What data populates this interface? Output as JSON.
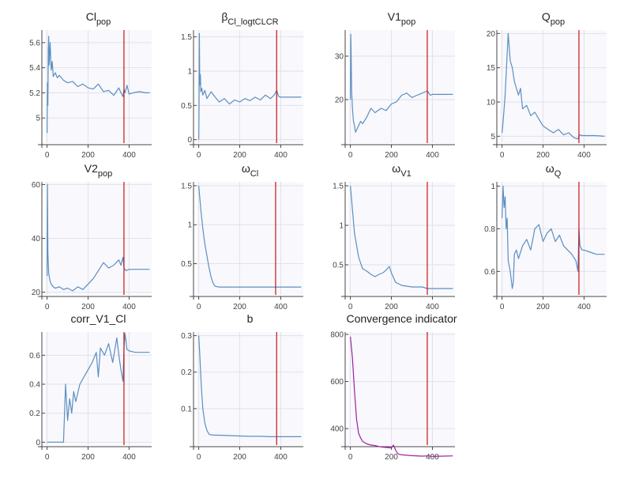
{
  "chart_data": [
    {
      "type": "line",
      "title": "Cl",
      "title_sub": "pop",
      "xticks": [
        0,
        200,
        400
      ],
      "xlim": [
        -10,
        510
      ],
      "yticks": [
        5,
        5.2,
        5.4,
        5.6
      ],
      "ytick_labels": [
        "5",
        "5.2",
        "5.4",
        "5.6"
      ],
      "ylim": [
        4.8,
        5.7
      ],
      "vline": 375,
      "color": "#5b8fbf",
      "x": [
        0,
        2,
        4,
        6,
        8,
        10,
        15,
        20,
        25,
        30,
        40,
        50,
        60,
        80,
        100,
        125,
        150,
        175,
        200,
        225,
        250,
        275,
        300,
        325,
        350,
        360,
        370,
        375,
        380,
        390,
        400,
        420,
        450,
        480,
        500
      ],
      "y": [
        4.88,
        5.28,
        5.1,
        5.55,
        5.65,
        5.42,
        5.6,
        5.38,
        5.45,
        5.33,
        5.36,
        5.32,
        5.34,
        5.3,
        5.28,
        5.29,
        5.25,
        5.27,
        5.24,
        5.23,
        5.27,
        5.21,
        5.22,
        5.18,
        5.24,
        5.2,
        5.17,
        5.23,
        5.2,
        5.26,
        5.19,
        5.2,
        5.21,
        5.2,
        5.2
      ]
    },
    {
      "type": "line",
      "title": "β",
      "title_sub": "Cl_logtCLCR",
      "xticks": [
        0,
        200,
        400
      ],
      "xlim": [
        -10,
        510
      ],
      "yticks": [
        0,
        0.5,
        1,
        1.5
      ],
      "ytick_labels": [
        "0",
        "0.5",
        "1",
        "1.5"
      ],
      "ylim": [
        -0.05,
        1.6
      ],
      "vline": 380,
      "color": "#5b8fbf",
      "x": [
        0,
        1,
        3,
        5,
        8,
        10,
        15,
        20,
        30,
        40,
        60,
        80,
        100,
        125,
        150,
        175,
        200,
        225,
        250,
        275,
        300,
        325,
        350,
        370,
        380,
        390,
        400,
        430,
        460,
        500
      ],
      "y": [
        0,
        0.3,
        1.55,
        0.8,
        0.95,
        0.7,
        0.75,
        0.65,
        0.72,
        0.6,
        0.7,
        0.62,
        0.55,
        0.6,
        0.52,
        0.58,
        0.55,
        0.6,
        0.57,
        0.62,
        0.58,
        0.65,
        0.6,
        0.66,
        0.72,
        0.63,
        0.62,
        0.62,
        0.62,
        0.62
      ]
    },
    {
      "type": "line",
      "title": "V1",
      "title_sub": "pop",
      "xticks": [
        0,
        200,
        400
      ],
      "xlim": [
        -10,
        510
      ],
      "yticks": [
        20,
        30
      ],
      "ytick_labels": [
        "20",
        "30"
      ],
      "ylim": [
        10,
        36
      ],
      "vline": 375,
      "color": "#5b8fbf",
      "x": [
        0,
        2,
        4,
        6,
        10,
        15,
        20,
        25,
        30,
        40,
        50,
        60,
        80,
        100,
        120,
        150,
        175,
        200,
        225,
        250,
        275,
        300,
        325,
        350,
        375,
        390,
        400,
        430,
        460,
        500
      ],
      "y": [
        20,
        35,
        30,
        22,
        18,
        15,
        14,
        12.5,
        13,
        14,
        15,
        14.5,
        16,
        18,
        17,
        18,
        17.5,
        19,
        19.5,
        21,
        21.5,
        20.5,
        21,
        21.5,
        22,
        21,
        21.2,
        21.2,
        21.2,
        21.2
      ]
    },
    {
      "type": "line",
      "title": "Q",
      "title_sub": "pop",
      "xticks": [
        0,
        200,
        400
      ],
      "xlim": [
        -10,
        510
      ],
      "yticks": [
        5,
        10,
        15,
        20
      ],
      "ytick_labels": [
        "5",
        "10",
        "15",
        "20"
      ],
      "ylim": [
        4,
        20.5
      ],
      "vline": 375,
      "color": "#5b8fbf",
      "x": [
        0,
        5,
        10,
        15,
        20,
        25,
        30,
        40,
        50,
        60,
        70,
        80,
        90,
        100,
        120,
        140,
        160,
        180,
        200,
        225,
        250,
        275,
        300,
        325,
        350,
        370,
        375,
        380,
        390,
        400,
        450,
        500
      ],
      "y": [
        5.5,
        7,
        9,
        11,
        14,
        17,
        20,
        16,
        15,
        13,
        12,
        11,
        12,
        9,
        9.5,
        8,
        8.5,
        7.5,
        6.5,
        6,
        5.5,
        6,
        5.2,
        5.5,
        4.8,
        4.6,
        5,
        5.2,
        5.1,
        5.1,
        5.1,
        5
      ]
    },
    {
      "type": "line",
      "title": "V2",
      "title_sub": "pop",
      "xticks": [
        0,
        200,
        400
      ],
      "xlim": [
        -10,
        510
      ],
      "yticks": [
        20,
        40,
        60
      ],
      "ytick_labels": [
        "20",
        "40",
        "60"
      ],
      "ylim": [
        19,
        61
      ],
      "vline": 375,
      "color": "#5b8fbf",
      "x": [
        0,
        2,
        4,
        6,
        8,
        10,
        15,
        20,
        30,
        40,
        60,
        80,
        100,
        125,
        150,
        175,
        200,
        225,
        250,
        275,
        300,
        325,
        350,
        360,
        370,
        375,
        385,
        400,
        430,
        460,
        500
      ],
      "y": [
        26,
        60,
        35,
        30,
        27,
        26,
        24,
        23,
        22,
        21.5,
        22,
        21,
        21.5,
        20.5,
        22,
        21,
        23,
        25,
        28,
        31,
        29,
        30,
        32,
        30,
        33,
        29,
        28,
        28.5,
        28.5,
        28.5,
        28.5
      ]
    },
    {
      "type": "line",
      "title": "ω",
      "title_sub": "Cl",
      "xticks": [
        0,
        200,
        400
      ],
      "xlim": [
        -10,
        510
      ],
      "yticks": [
        0.5,
        1,
        1.5
      ],
      "ytick_labels": [
        "0.5",
        "1",
        "1.5"
      ],
      "ylim": [
        0.1,
        1.55
      ],
      "vline": 375,
      "color": "#5b8fbf",
      "x": [
        0,
        10,
        20,
        30,
        40,
        50,
        60,
        70,
        80,
        100,
        150,
        200,
        250,
        300,
        350,
        375,
        400,
        450,
        500
      ],
      "y": [
        1.5,
        1.2,
        0.95,
        0.75,
        0.6,
        0.45,
        0.33,
        0.25,
        0.21,
        0.2,
        0.2,
        0.2,
        0.2,
        0.2,
        0.2,
        0.2,
        0.2,
        0.2,
        0.2
      ]
    },
    {
      "type": "line",
      "title": "ω",
      "title_sub": "V1",
      "xticks": [
        0,
        200,
        400
      ],
      "xlim": [
        -10,
        510
      ],
      "yticks": [
        0.5,
        1,
        1.5
      ],
      "ytick_labels": [
        "0.5",
        "1",
        "1.5"
      ],
      "ylim": [
        0.12,
        1.55
      ],
      "vline": 375,
      "color": "#5b8fbf",
      "x": [
        0,
        10,
        20,
        30,
        40,
        50,
        60,
        80,
        100,
        120,
        140,
        160,
        180,
        190,
        200,
        220,
        250,
        300,
        350,
        375,
        400,
        450,
        500
      ],
      "y": [
        1.5,
        1.2,
        0.9,
        0.75,
        0.6,
        0.52,
        0.45,
        0.42,
        0.38,
        0.35,
        0.38,
        0.4,
        0.45,
        0.48,
        0.4,
        0.28,
        0.24,
        0.22,
        0.22,
        0.2,
        0.2,
        0.2,
        0.2
      ]
    },
    {
      "type": "line",
      "title": "ω",
      "title_sub": "Q",
      "xticks": [
        0,
        200,
        400
      ],
      "xlim": [
        -10,
        510
      ],
      "yticks": [
        0.6,
        0.8,
        1
      ],
      "ytick_labels": [
        "0.6",
        "0.8",
        "1"
      ],
      "ylim": [
        0.49,
        1.02
      ],
      "vline": 375,
      "color": "#5b8fbf",
      "x": [
        0,
        5,
        10,
        15,
        20,
        25,
        30,
        40,
        50,
        55,
        60,
        70,
        80,
        100,
        120,
        140,
        160,
        180,
        200,
        220,
        240,
        260,
        280,
        300,
        320,
        340,
        360,
        370,
        375,
        380,
        390,
        400,
        430,
        460,
        500
      ],
      "y": [
        0.85,
        1.0,
        0.9,
        0.95,
        0.8,
        0.85,
        0.65,
        0.6,
        0.52,
        0.55,
        0.68,
        0.7,
        0.66,
        0.72,
        0.75,
        0.7,
        0.8,
        0.82,
        0.74,
        0.78,
        0.8,
        0.74,
        0.77,
        0.72,
        0.7,
        0.68,
        0.65,
        0.6,
        0.8,
        0.72,
        0.7,
        0.7,
        0.69,
        0.68,
        0.68
      ]
    },
    {
      "type": "line",
      "title": "corr_V1_Cl",
      "xticks": [
        0,
        200,
        400
      ],
      "xlim": [
        -10,
        510
      ],
      "yticks": [
        0,
        0.2,
        0.4,
        0.6
      ],
      "ytick_labels": [
        "0",
        "0.2",
        "0.4",
        "0.6"
      ],
      "ylim": [
        -0.02,
        0.76
      ],
      "vline": 375,
      "color": "#5b8fbf",
      "x": [
        0,
        40,
        70,
        80,
        85,
        90,
        100,
        110,
        120,
        130,
        140,
        160,
        180,
        200,
        220,
        240,
        250,
        260,
        280,
        300,
        320,
        340,
        350,
        360,
        370,
        375,
        380,
        390,
        400,
        430,
        460,
        500
      ],
      "y": [
        0,
        0,
        0,
        0,
        0.2,
        0.4,
        0.15,
        0.3,
        0.2,
        0.35,
        0.28,
        0.4,
        0.45,
        0.5,
        0.55,
        0.62,
        0.45,
        0.65,
        0.6,
        0.68,
        0.55,
        0.72,
        0.6,
        0.5,
        0.42,
        0.65,
        0.75,
        0.64,
        0.63,
        0.62,
        0.62,
        0.62
      ]
    },
    {
      "type": "line",
      "title": "b",
      "xticks": [
        0,
        200,
        400
      ],
      "xlim": [
        -10,
        510
      ],
      "yticks": [
        0.1,
        0.2,
        0.3
      ],
      "ytick_labels": [
        "0.1",
        "0.2",
        "0.3"
      ],
      "ylim": [
        0.0,
        0.31
      ],
      "vline": 380,
      "color": "#5b8fbf",
      "x": [
        0,
        5,
        10,
        15,
        20,
        30,
        40,
        50,
        60,
        80,
        100,
        150,
        200,
        250,
        300,
        350,
        380,
        400,
        450,
        500
      ],
      "y": [
        0.3,
        0.25,
        0.19,
        0.14,
        0.1,
        0.06,
        0.04,
        0.03,
        0.028,
        0.027,
        0.027,
        0.026,
        0.025,
        0.024,
        0.024,
        0.023,
        0.023,
        0.023,
        0.023,
        0.023
      ]
    },
    {
      "type": "line",
      "title": "Convergence indicator",
      "xticks": [
        0,
        200,
        400
      ],
      "xlim": [
        -10,
        510
      ],
      "yticks": [
        400,
        600,
        800
      ],
      "ytick_labels": [
        "400",
        "600",
        "800"
      ],
      "ylim": [
        330,
        810
      ],
      "vline": 375,
      "color": "#a020a0",
      "x": [
        0,
        10,
        20,
        30,
        40,
        50,
        60,
        80,
        100,
        120,
        150,
        175,
        200,
        210,
        220,
        230,
        240,
        260,
        300,
        350,
        375,
        400,
        450,
        500
      ],
      "y": [
        790,
        700,
        560,
        440,
        380,
        360,
        345,
        335,
        330,
        328,
        322,
        320,
        318,
        330,
        310,
        295,
        290,
        288,
        285,
        283,
        284,
        282,
        283,
        284
      ]
    }
  ]
}
